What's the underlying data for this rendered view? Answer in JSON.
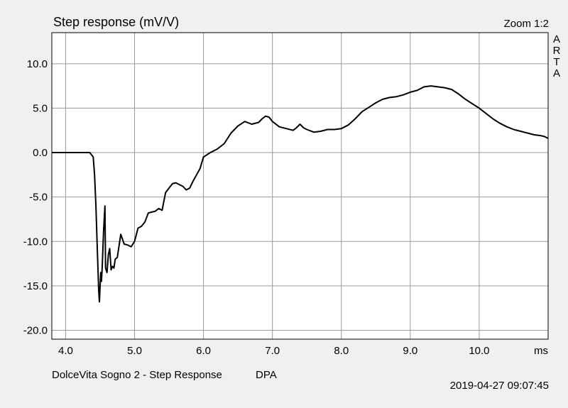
{
  "chart_data": {
    "type": "line",
    "title": "Step response (mV/V)",
    "xlabel": "ms",
    "ylabel": "",
    "xlim": [
      3.8,
      11.0
    ],
    "ylim": [
      -21.0,
      13.5
    ],
    "grid": true,
    "x_ticks": [
      4.0,
      5.0,
      6.0,
      7.0,
      8.0,
      9.0,
      10.0
    ],
    "x_tick_labels": [
      "4.0",
      "5.0",
      "6.0",
      "7.0",
      "8.0",
      "9.0",
      "10.0"
    ],
    "y_ticks": [
      10.0,
      5.0,
      0.0,
      -5.0,
      -10.0,
      -15.0,
      -20.0
    ],
    "y_tick_labels": [
      "10.0",
      "5.0",
      "0.0",
      "-5.0",
      "-10.0",
      "-15.0",
      "-20.0"
    ],
    "line_color": "#000000",
    "series": [
      {
        "x": [
          3.8,
          4.0,
          4.2,
          4.35,
          4.4,
          4.42,
          4.44,
          4.46,
          4.48,
          4.49,
          4.5,
          4.51,
          4.52,
          4.53,
          4.55,
          4.57,
          4.58,
          4.6,
          4.62,
          4.64,
          4.66,
          4.68,
          4.7,
          4.72,
          4.75,
          4.8,
          4.85,
          4.9,
          4.95,
          5.0,
          5.05,
          5.1,
          5.15,
          5.2,
          5.25,
          5.3,
          5.35,
          5.4,
          5.45,
          5.5,
          5.55,
          5.6,
          5.65,
          5.7,
          5.75,
          5.8,
          5.85,
          5.9,
          5.95,
          6.0,
          6.1,
          6.2,
          6.3,
          6.4,
          6.5,
          6.6,
          6.7,
          6.8,
          6.85,
          6.9,
          6.95,
          7.0,
          7.1,
          7.2,
          7.3,
          7.35,
          7.4,
          7.45,
          7.5,
          7.6,
          7.7,
          7.8,
          7.9,
          8.0,
          8.1,
          8.2,
          8.3,
          8.4,
          8.5,
          8.6,
          8.7,
          8.8,
          8.9,
          9.0,
          9.1,
          9.2,
          9.3,
          9.4,
          9.5,
          9.6,
          9.7,
          9.8,
          9.9,
          10.0,
          10.1,
          10.2,
          10.3,
          10.4,
          10.5,
          10.6,
          10.7,
          10.8,
          10.9,
          10.95,
          11.0
        ],
        "y": [
          0.0,
          0.0,
          0.0,
          0.0,
          -0.5,
          -2.5,
          -6.0,
          -11.0,
          -15.5,
          -16.8,
          -15.0,
          -13.5,
          -14.5,
          -13.0,
          -9.0,
          -6.0,
          -13.0,
          -13.5,
          -11.5,
          -10.8,
          -13.2,
          -12.8,
          -13.0,
          -12.0,
          -11.8,
          -9.2,
          -10.3,
          -10.4,
          -10.6,
          -10.0,
          -8.5,
          -8.3,
          -7.8,
          -6.8,
          -6.7,
          -6.6,
          -6.3,
          -6.5,
          -4.5,
          -4.0,
          -3.5,
          -3.4,
          -3.6,
          -3.8,
          -4.2,
          -4.0,
          -3.2,
          -2.5,
          -1.8,
          -0.5,
          0.0,
          0.4,
          1.0,
          2.2,
          3.0,
          3.5,
          3.2,
          3.4,
          3.8,
          4.1,
          4.0,
          3.5,
          2.9,
          2.7,
          2.5,
          2.8,
          3.2,
          2.8,
          2.6,
          2.3,
          2.4,
          2.6,
          2.6,
          2.7,
          3.1,
          3.8,
          4.6,
          5.1,
          5.6,
          6.0,
          6.2,
          6.3,
          6.5,
          6.8,
          7.0,
          7.4,
          7.5,
          7.4,
          7.3,
          7.1,
          6.6,
          6.0,
          5.5,
          5.0,
          4.4,
          3.8,
          3.3,
          2.9,
          2.6,
          2.4,
          2.2,
          2.0,
          1.9,
          1.8,
          1.6
        ]
      }
    ]
  },
  "header": {
    "zoom_label": "Zoom 1:2",
    "side_letters": [
      "A",
      "R",
      "T",
      "A"
    ]
  },
  "footer": {
    "measurement_name": "DolceVita Sogno 2 - Step Response",
    "tag": "DPA",
    "timestamp": "2019-04-27   09:07:45"
  }
}
